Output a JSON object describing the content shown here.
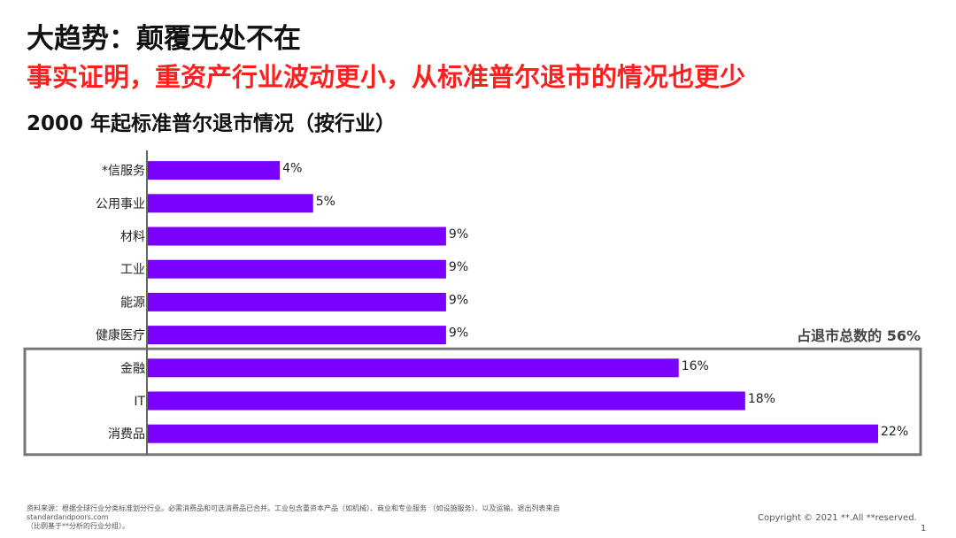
{
  "header": {
    "title": "大趋势：颠覆无处不在",
    "subtitle": "事实证明，重资产行业波动更小，从标准普尔退市的情况也更少",
    "chart_title": "2000 年起标准普尔退市情况（按行业）"
  },
  "chart_data": {
    "type": "bar",
    "orientation": "horizontal",
    "categories": [
      "*信服务",
      "公用事业",
      "材料",
      "工业",
      "能源",
      "健康医疗",
      "金融",
      "IT",
      "消费品"
    ],
    "values": [
      4,
      5,
      9,
      9,
      9,
      9,
      16,
      18,
      22
    ],
    "value_labels": [
      "4%",
      "5%",
      "9%",
      "9%",
      "9%",
      "9%",
      "16%",
      "18%",
      "22%"
    ],
    "xlim": [
      0,
      22
    ],
    "bar_color": "#7a00ff",
    "highlight": {
      "categories": [
        "金融",
        "IT",
        "消费品"
      ],
      "label": "占退市总数的 56%"
    }
  },
  "footer": {
    "source_line1": "资料来源：根据全球行业分类标准划分行业。必需消费品和可选消费品已合并。工业包含重资本产品（如机械）、商业和专业服务 （如设施服务）、以及运输。退出列表来自",
    "source_line2": "standardandpoors.com",
    "source_line3": "（比例基于**分析的行业分组）。",
    "copyright": "Copyright © 2021 **.All **reserved.",
    "page_number": "1"
  }
}
